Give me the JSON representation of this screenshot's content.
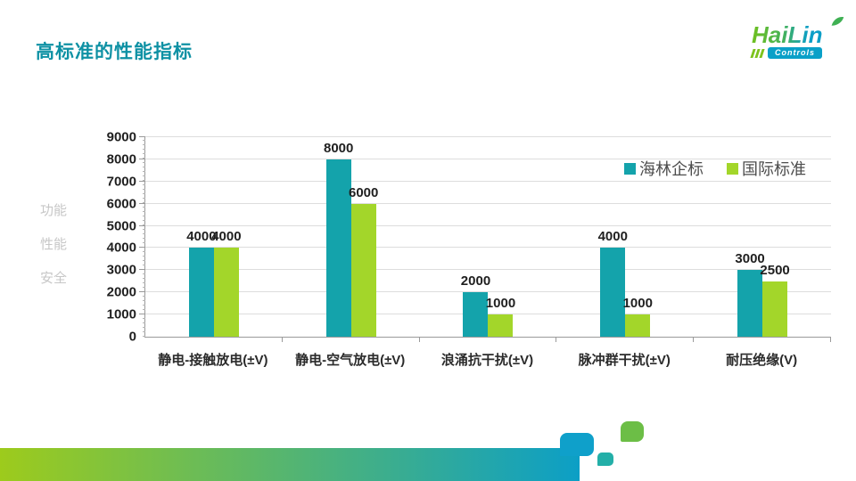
{
  "slide": {
    "title": "高标准的性能指标"
  },
  "logo": {
    "brand": "HaiLin",
    "sub": "Controls"
  },
  "chart_data": {
    "type": "bar",
    "title": "",
    "categories": [
      "静电-接触放电(±V)",
      "静电-空气放电(±V)",
      "浪涌抗干扰(±V)",
      "脉冲群干扰(±V)",
      "耐压绝缘(V)"
    ],
    "series": [
      {
        "name": "海林企标",
        "color": "#14A3AB",
        "values": [
          4000,
          8000,
          2000,
          4000,
          3000
        ]
      },
      {
        "name": "国际标准",
        "color": "#A3D62A",
        "values": [
          4000,
          6000,
          1000,
          1000,
          2500
        ]
      }
    ],
    "ylabel_lines": [
      "功能",
      "性能",
      "安全"
    ],
    "ylim": [
      0,
      9000
    ],
    "ytick_step": 1000,
    "grid": "horizontal",
    "legend_position": "top-right",
    "data_labels": true
  },
  "colors": {
    "title": "#0E91A4",
    "footer_gradient_left": "#9DCB1C",
    "footer_gradient_right": "#0C9FC6",
    "deco_blue": "#0FA0CA",
    "deco_teal": "#23AFA8",
    "deco_green": "#6CBE46",
    "logo_leaf": "#3FB053"
  }
}
